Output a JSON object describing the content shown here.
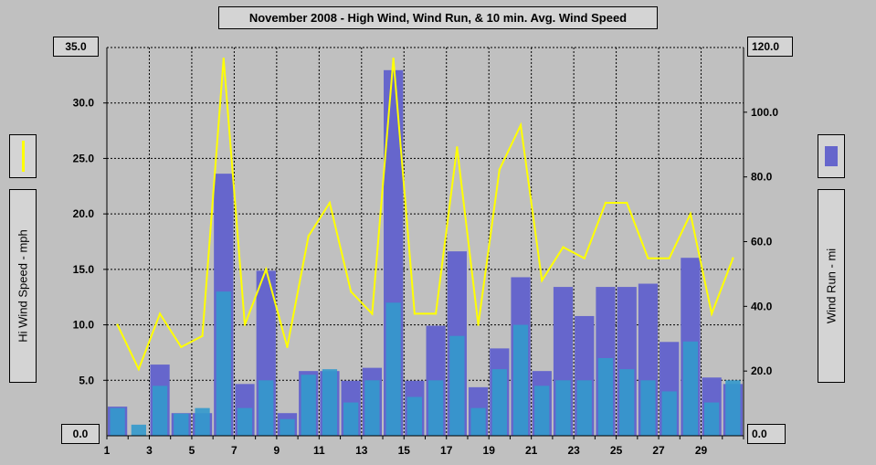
{
  "title": "November 2008 - High Wind, Wind Run, & 10 min. Avg. Wind Speed",
  "left_axis": {
    "label": "Hi Wind Speed - mph",
    "top_value": "35.0",
    "bottom_value": "0.0"
  },
  "right_axis": {
    "label": "Wind Run - mi",
    "top_value": "120.0",
    "bottom_value": "0.0"
  },
  "colors": {
    "high_wind": "#ffff00",
    "wind_run": "#6666cc",
    "avg_wind": "#3399cc",
    "background": "#c0c0c0",
    "grid": "#000000"
  },
  "chart_data": {
    "type": "bar",
    "title": "November 2008 - High Wind, Wind Run, & 10 min. Avg. Wind Speed",
    "x": [
      1,
      2,
      3,
      4,
      5,
      6,
      7,
      8,
      9,
      10,
      11,
      12,
      13,
      14,
      15,
      16,
      17,
      18,
      19,
      20,
      21,
      22,
      23,
      24,
      25,
      26,
      27,
      28,
      29,
      30
    ],
    "x_ticks": [
      1,
      3,
      5,
      7,
      9,
      11,
      13,
      15,
      17,
      19,
      21,
      23,
      25,
      27,
      29
    ],
    "x_range": [
      1,
      31
    ],
    "ylim_left": [
      0,
      35
    ],
    "ylim_right": [
      0,
      120
    ],
    "y_ticks_left": [
      0,
      5,
      10,
      15,
      20,
      25,
      30,
      35
    ],
    "y_tick_labels_left": [
      "0.0",
      "5.0",
      "10.0",
      "15.0",
      "20.0",
      "25.0",
      "30.0",
      "35.0"
    ],
    "y_ticks_right": [
      0,
      20,
      40,
      60,
      80,
      100,
      120
    ],
    "y_tick_labels_right": [
      "0.0",
      "20.0",
      "40.0",
      "60.0",
      "80.0",
      "100.0",
      "120.0"
    ],
    "grid": true,
    "series": [
      {
        "name": "Hi Wind Speed - mph",
        "axis": "left",
        "kind": "line",
        "values": [
          10,
          6,
          11,
          8,
          9,
          34,
          10,
          15,
          8,
          18,
          21,
          13,
          11,
          34,
          11,
          11,
          26,
          10,
          24,
          28,
          14,
          17,
          16,
          21,
          21,
          16,
          16,
          20,
          11,
          16
        ]
      },
      {
        "name": "Wind Run - mi",
        "axis": "right",
        "kind": "bar",
        "values": [
          9,
          0,
          22,
          7,
          7,
          81,
          16,
          51,
          7,
          20,
          20,
          17,
          21,
          113,
          17,
          34,
          57,
          15,
          27,
          49,
          20,
          46,
          37,
          46,
          46,
          47,
          29,
          55,
          18,
          16
        ]
      },
      {
        "name": "10 min. Avg. Wind Speed",
        "axis": "left",
        "kind": "bar",
        "values": [
          2.5,
          1,
          4.5,
          2,
          2.5,
          13,
          2.5,
          5,
          1.5,
          5.5,
          6,
          3,
          5,
          12,
          3.5,
          5,
          9,
          2.5,
          6,
          10,
          4.5,
          5,
          5,
          7,
          6,
          5,
          4,
          8.5,
          3,
          5
        ]
      }
    ]
  }
}
